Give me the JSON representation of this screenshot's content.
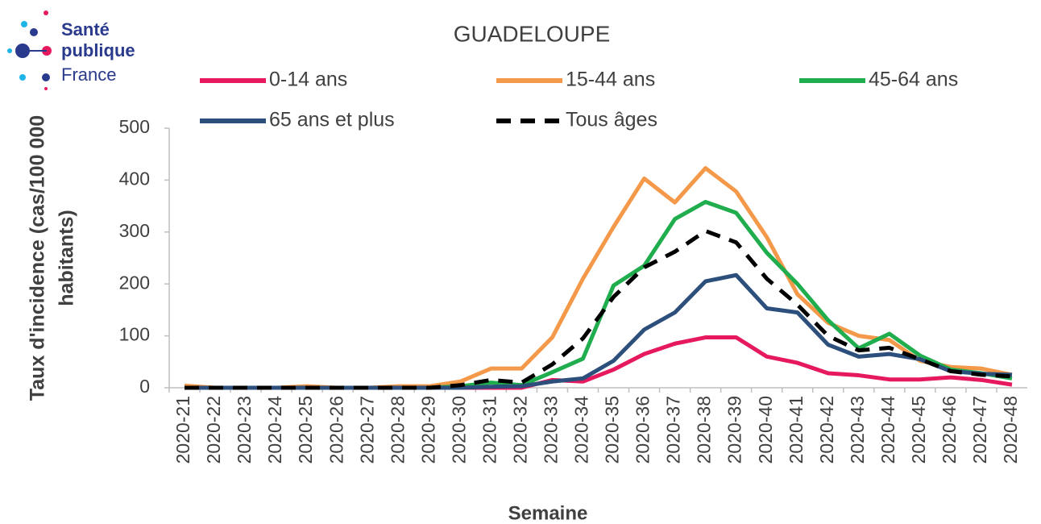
{
  "logo": [
    "Santé",
    "publique",
    "France"
  ],
  "chart_data": {
    "type": "line",
    "title": "GUADELOUPE",
    "xlabel": "Semaine",
    "ylabel": [
      "Taux d'incidence  (cas/100 000",
      "habitants)"
    ],
    "categories": [
      "2020-21",
      "2020-22",
      "2020-23",
      "2020-24",
      "2020-25",
      "2020-26",
      "2020-27",
      "2020-28",
      "2020-29",
      "2020-30",
      "2020-31",
      "2020-32",
      "2020-33",
      "2020-34",
      "2020-35",
      "2020-36",
      "2020-37",
      "2020-38",
      "2020-39",
      "2020-40",
      "2020-41",
      "2020-42",
      "2020-43",
      "2020-44",
      "2020-45",
      "2020-46",
      "2020-47",
      "2020-48"
    ],
    "ylim": [
      0,
      500
    ],
    "yticks": [
      0,
      100,
      200,
      300,
      400,
      500
    ],
    "grid": false,
    "series": [
      {
        "name": "0-14 ans",
        "color": "#e6195e",
        "style": "solid",
        "values": [
          0,
          0,
          0,
          0,
          0,
          0,
          0,
          0,
          0,
          0,
          0,
          0,
          15,
          12,
          35,
          65,
          85,
          97,
          97,
          60,
          48,
          28,
          24,
          16,
          16,
          20,
          15,
          6
        ]
      },
      {
        "name": "15-44 ans",
        "color": "#f4994a",
        "style": "solid",
        "values": [
          4,
          0,
          0,
          0,
          3,
          0,
          0,
          3,
          3,
          12,
          37,
          37,
          97,
          210,
          310,
          403,
          357,
          423,
          378,
          290,
          180,
          125,
          100,
          92,
          52,
          40,
          37,
          25
        ]
      },
      {
        "name": "45-64 ans",
        "color": "#1fad4e",
        "style": "solid",
        "values": [
          0,
          0,
          0,
          0,
          0,
          0,
          0,
          0,
          0,
          3,
          10,
          5,
          30,
          56,
          197,
          235,
          325,
          358,
          337,
          260,
          200,
          130,
          76,
          104,
          62,
          35,
          28,
          18
        ]
      },
      {
        "name": "65 ans et plus",
        "color": "#2c4f7c",
        "style": "solid",
        "values": [
          0,
          0,
          0,
          0,
          0,
          0,
          0,
          0,
          0,
          0,
          2,
          3,
          12,
          18,
          52,
          112,
          145,
          205,
          217,
          153,
          145,
          83,
          60,
          65,
          55,
          32,
          27,
          25
        ]
      },
      {
        "name": "Tous âges",
        "color": "#000000",
        "style": "dashed",
        "values": [
          0,
          0,
          0,
          0,
          0,
          0,
          0,
          0,
          0,
          5,
          15,
          10,
          45,
          95,
          175,
          232,
          262,
          302,
          280,
          210,
          160,
          100,
          72,
          77,
          55,
          32,
          25,
          22
        ]
      }
    ]
  }
}
